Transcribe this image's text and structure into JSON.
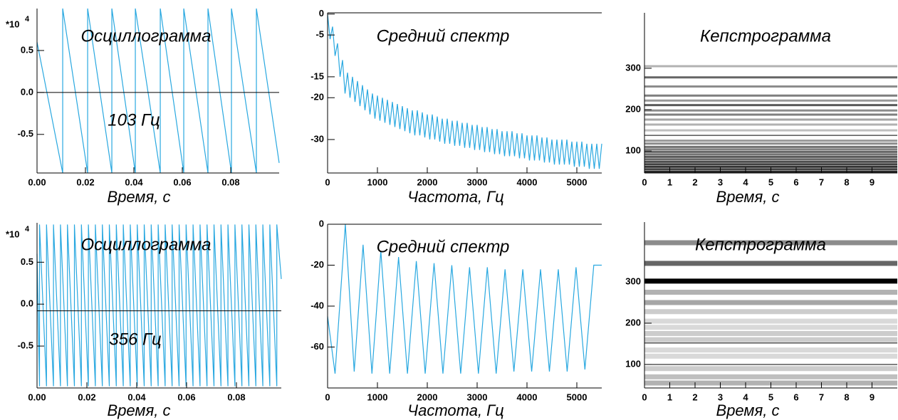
{
  "chart_data": [
    {
      "type": "line",
      "title": "Осциллограмма",
      "annotation": "103 Гц",
      "x_label": "Время, с",
      "scale_label": "*10",
      "scale_exponent": "4",
      "color": "#29a8e0",
      "baseline": 0,
      "xlim": [
        0,
        0.1
      ],
      "ylim": [
        -0.96,
        1.0
      ],
      "xticks": [
        {
          "value": 0,
          "label": "0.00"
        },
        {
          "value": 0.02,
          "label": "0.02"
        },
        {
          "value": 0.04,
          "label": "0.04"
        },
        {
          "value": 0.06,
          "label": "0.06"
        },
        {
          "value": 0.08,
          "label": "0.08"
        }
      ],
      "yticks": [
        0.5,
        {
          "value": 0,
          "label": "0.0"
        },
        -0.5
      ],
      "x": [
        0,
        0.0106,
        0.0106,
        0.0209,
        0.0209,
        0.0309,
        0.0309,
        0.0406,
        0.0406,
        0.0509,
        0.0509,
        0.0606,
        0.0606,
        0.0706,
        0.0706,
        0.0803,
        0.0803,
        0.0906,
        0.0906,
        0.1
      ],
      "values": [
        0.6,
        -0.96,
        1.0,
        -0.96,
        1.0,
        -0.96,
        1.0,
        -0.96,
        1.0,
        -0.96,
        1.0,
        -0.96,
        1.0,
        -0.96,
        1.0,
        -0.96,
        1.0,
        -0.96,
        1.0,
        -0.84
      ]
    },
    {
      "type": "line",
      "title": "Средний спектр",
      "x_label": "Частота, Гц",
      "color": "#29a8e0",
      "xlim": [
        0,
        5500
      ],
      "ylim": [
        -38,
        0.3
      ],
      "xticks": [
        0,
        1000,
        2000,
        3000,
        4000,
        5000
      ],
      "yticks": [
        0,
        -5,
        -15,
        -20,
        -30
      ],
      "x": [
        0,
        50,
        100,
        150,
        200,
        250,
        300,
        350,
        400,
        450,
        500,
        550,
        600,
        650,
        700,
        750,
        800,
        850,
        900,
        950,
        1000,
        1050,
        1100,
        1150,
        1200,
        1250,
        1300,
        1350,
        1400,
        1450,
        1500,
        1550,
        1600,
        1650,
        1700,
        1750,
        1800,
        1850,
        1900,
        1950,
        2000,
        2050,
        2100,
        2150,
        2200,
        2250,
        2300,
        2350,
        2400,
        2450,
        2500,
        2550,
        2600,
        2650,
        2700,
        2750,
        2800,
        2850,
        2900,
        2950,
        3000,
        3050,
        3100,
        3150,
        3200,
        3250,
        3300,
        3350,
        3400,
        3450,
        3500,
        3550,
        3600,
        3650,
        3700,
        3750,
        3800,
        3850,
        3900,
        3950,
        4000,
        4050,
        4100,
        4150,
        4200,
        4250,
        4300,
        4350,
        4400,
        4450,
        4500,
        4550,
        4600,
        4650,
        4700,
        4750,
        4800,
        4850,
        4900,
        4950,
        5000,
        5050,
        5100,
        5150,
        5200,
        5250,
        5300,
        5350,
        5400,
        5450,
        5500
      ],
      "values": [
        0,
        -6,
        -3,
        -10,
        -7,
        -15,
        -11,
        -19,
        -14,
        -20,
        -15,
        -21,
        -16,
        -22,
        -17,
        -23,
        -18,
        -24,
        -19,
        -25,
        -19.5,
        -25.5,
        -20,
        -26,
        -20.5,
        -26.5,
        -21,
        -27,
        -21.5,
        -27.5,
        -22,
        -28,
        -22.5,
        -28.5,
        -23,
        -29,
        -23,
        -29,
        -23.5,
        -29.5,
        -24,
        -30,
        -24,
        -30,
        -24.5,
        -30.5,
        -25,
        -31,
        -25,
        -31,
        -25.5,
        -31.5,
        -25.5,
        -31.5,
        -26,
        -32,
        -26,
        -32,
        -26.5,
        -32.5,
        -26.5,
        -32.5,
        -27,
        -33,
        -27,
        -33,
        -27.5,
        -33.5,
        -27.5,
        -33.5,
        -28,
        -34,
        -28,
        -34,
        -28,
        -34,
        -28.5,
        -34.5,
        -28.5,
        -34.5,
        -29,
        -35,
        -29,
        -35,
        -29,
        -35,
        -29.5,
        -35.5,
        -29.5,
        -35.5,
        -30,
        -36,
        -30,
        -36,
        -30,
        -36,
        -30,
        -36,
        -30.5,
        -36.5,
        -30.5,
        -36.5,
        -30.5,
        -36.5,
        -31,
        -37,
        -31,
        -37,
        -31,
        -37,
        -31
      ]
    },
    {
      "type": "heatmap",
      "title": "Кепстрограмма",
      "x_label": "Время, с",
      "xlim": [
        0,
        10
      ],
      "ylim": [
        47,
        434
      ],
      "xticks": [
        0,
        1,
        2,
        3,
        4,
        5,
        6,
        7,
        8,
        9
      ],
      "yticks": [
        100,
        200,
        300
      ],
      "y": [
        305,
        278,
        256,
        234,
        222,
        211,
        198,
        188,
        176,
        164,
        150,
        125,
        118,
        110,
        104,
        98,
        92,
        86,
        80,
        74,
        68,
        62,
        56,
        50
      ],
      "values": [
        0.3,
        0.6,
        0.45,
        0.5,
        0.4,
        0.65,
        0.45,
        0.5,
        0.35,
        0.3,
        0.25,
        0.4,
        0.45,
        0.55,
        0.5,
        0.6,
        0.55,
        0.65,
        0.6,
        0.7,
        0.75,
        0.8,
        0.75,
        0.85
      ],
      "lines": [
        138
      ]
    },
    {
      "type": "line",
      "title": "Осциллограмма",
      "annotation": "356 Гц",
      "x_label": "Время, с",
      "scale_label": "*10",
      "scale_exponent": "4",
      "color": "#29a8e0",
      "baseline": -0.08,
      "xlim": [
        0,
        0.098
      ],
      "ylim": [
        -1.0,
        0.97
      ],
      "xticks": [
        {
          "value": 0,
          "label": "0.00"
        },
        {
          "value": 0.02,
          "label": "0.02"
        },
        {
          "value": 0.04,
          "label": "0.04"
        },
        {
          "value": 0.06,
          "label": "0.06"
        },
        {
          "value": 0.08,
          "label": "0.08"
        }
      ],
      "yticks": [
        0.5,
        {
          "value": 0,
          "label": "0.0"
        },
        -0.5
      ],
      "x": [
        0,
        0.001,
        0.001,
        0.0038,
        0.0038,
        0.0066,
        0.0066,
        0.0094,
        0.0094,
        0.0122,
        0.0122,
        0.015,
        0.015,
        0.0178,
        0.0178,
        0.0206,
        0.0206,
        0.0234,
        0.0234,
        0.0262,
        0.0262,
        0.029,
        0.029,
        0.0318,
        0.0318,
        0.0346,
        0.0346,
        0.0374,
        0.0374,
        0.0402,
        0.0402,
        0.043,
        0.043,
        0.0458,
        0.0458,
        0.0486,
        0.0486,
        0.0514,
        0.0514,
        0.0542,
        0.0542,
        0.057,
        0.057,
        0.0598,
        0.0598,
        0.0626,
        0.0626,
        0.0654,
        0.0654,
        0.0682,
        0.0682,
        0.071,
        0.071,
        0.0738,
        0.0738,
        0.0766,
        0.0766,
        0.0794,
        0.0794,
        0.0822,
        0.0822,
        0.085,
        0.085,
        0.0878,
        0.0878,
        0.0906,
        0.0906,
        0.0934,
        0.0934,
        0.0962,
        0.0962,
        0.098
      ],
      "values": [
        0.6,
        -0.98,
        0.95,
        -0.98,
        0.95,
        -0.98,
        0.95,
        -0.98,
        0.95,
        -0.98,
        0.95,
        -0.98,
        0.95,
        -0.98,
        0.95,
        -0.98,
        0.95,
        -0.98,
        0.95,
        -0.98,
        0.95,
        -0.98,
        0.95,
        -0.98,
        0.95,
        -0.98,
        0.95,
        -0.98,
        0.95,
        -0.98,
        0.95,
        -0.98,
        0.95,
        -0.98,
        0.95,
        -0.98,
        0.95,
        -0.98,
        0.95,
        -0.98,
        0.95,
        -0.98,
        0.95,
        -0.98,
        0.95,
        -0.98,
        0.95,
        -0.98,
        0.95,
        -0.98,
        0.95,
        -0.98,
        0.95,
        -0.98,
        0.95,
        -0.98,
        0.95,
        -0.98,
        0.95,
        -0.98,
        0.95,
        -0.98,
        0.95,
        -0.98,
        0.95,
        -0.98,
        0.95,
        -0.98,
        0.95,
        -0.98,
        0.95,
        0.3
      ]
    },
    {
      "type": "line",
      "title": "Средний спектр",
      "x_label": "Частота, Гц",
      "color": "#29a8e0",
      "xlim": [
        0,
        5500
      ],
      "ylim": [
        -80,
        0
      ],
      "xticks": [
        0,
        1000,
        2000,
        3000,
        4000,
        5000
      ],
      "yticks": [
        0,
        -20,
        -40,
        -60
      ],
      "x": [
        0,
        150,
        356,
        534,
        712,
        890,
        1068,
        1246,
        1424,
        1602,
        1780,
        1958,
        2136,
        2314,
        2492,
        2670,
        2848,
        3026,
        3204,
        3382,
        3560,
        3738,
        3916,
        4094,
        4272,
        4450,
        4628,
        4806,
        4984,
        5162,
        5340,
        5500
      ],
      "values": [
        -45,
        -73,
        0,
        -72,
        -10,
        -73,
        -13,
        -73,
        -16,
        -73,
        -18,
        -73,
        -19,
        -73,
        -20,
        -73,
        -21,
        -73,
        -21,
        -73,
        -22,
        -72,
        -22,
        -72,
        -22,
        -72,
        -22,
        -72,
        -21,
        -71,
        -20,
        -20
      ]
    },
    {
      "type": "heatmap",
      "title": "Кепстрограмма",
      "x_label": "Время, с",
      "xlim": [
        0,
        10
      ],
      "ylim": [
        43,
        445
      ],
      "xticks": [
        0,
        1,
        2,
        3,
        4,
        5,
        6,
        7,
        8,
        9
      ],
      "yticks": [
        100,
        200,
        300
      ],
      "y": [
        395,
        345,
        302,
        275,
        250,
        228,
        205,
        190,
        175,
        160,
        135,
        120,
        90,
        70,
        55
      ],
      "values": [
        0.45,
        0.6,
        1.0,
        0.3,
        0.35,
        0.2,
        0.15,
        0.15,
        0.2,
        0.2,
        0.15,
        0.15,
        0.2,
        0.25,
        0.3
      ],
      "lines": [
        152,
        100
      ]
    }
  ]
}
